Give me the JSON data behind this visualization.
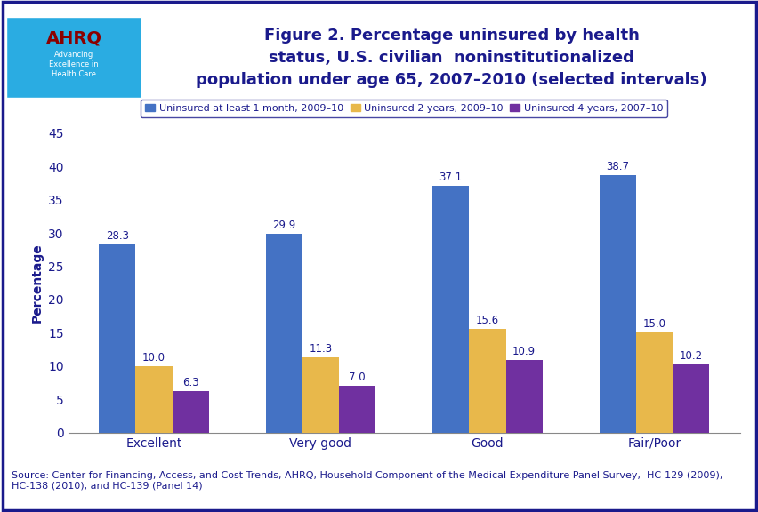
{
  "title": "Figure 2. Percentage uninsured by health\nstatus, U.S. civilian  noninstitutionalized\npopulation under age 65, 2007–2010 (selected intervals)",
  "title_color": "#1a1a8c",
  "title_fontsize": 13,
  "categories": [
    "Excellent",
    "Very good",
    "Good",
    "Fair/Poor"
  ],
  "series": [
    {
      "label": "Uninsured at least 1 month, 2009–10",
      "color": "#4472c4",
      "values": [
        28.3,
        29.9,
        37.1,
        38.7
      ]
    },
    {
      "label": "Uninsured 2 years, 2009–10",
      "color": "#e8b84b",
      "values": [
        10.0,
        11.3,
        15.6,
        15.0
      ]
    },
    {
      "label": "Uninsured 4 years, 2007–10",
      "color": "#7030a0",
      "values": [
        6.3,
        7.0,
        10.9,
        10.2
      ]
    }
  ],
  "ylabel": "Percentage",
  "ylim": [
    0,
    45
  ],
  "yticks": [
    0,
    5,
    10,
    15,
    20,
    25,
    30,
    35,
    40,
    45
  ],
  "bar_width": 0.22,
  "value_label_fontsize": 8.5,
  "value_label_color": "#1a1a8c",
  "axis_label_fontsize": 10,
  "tick_label_fontsize": 10,
  "legend_fontsize": 8,
  "legend_box_color": "#1a1a8c",
  "source_text": "Source: Center for Financing, Access, and Cost Trends, AHRQ, Household Component of the Medical Expenditure Panel Survey,  HC-129 (2009),\nHC-138 (2010), and HC-139 (Panel 14)",
  "source_fontsize": 8,
  "source_color": "#1a1a8c",
  "outer_border_color": "#1a1a8c",
  "header_separator_color": "#1a1a8c",
  "logo_bg_color": "#2aace2",
  "background_color": "#ffffff",
  "plot_bg_color": "#ffffff"
}
